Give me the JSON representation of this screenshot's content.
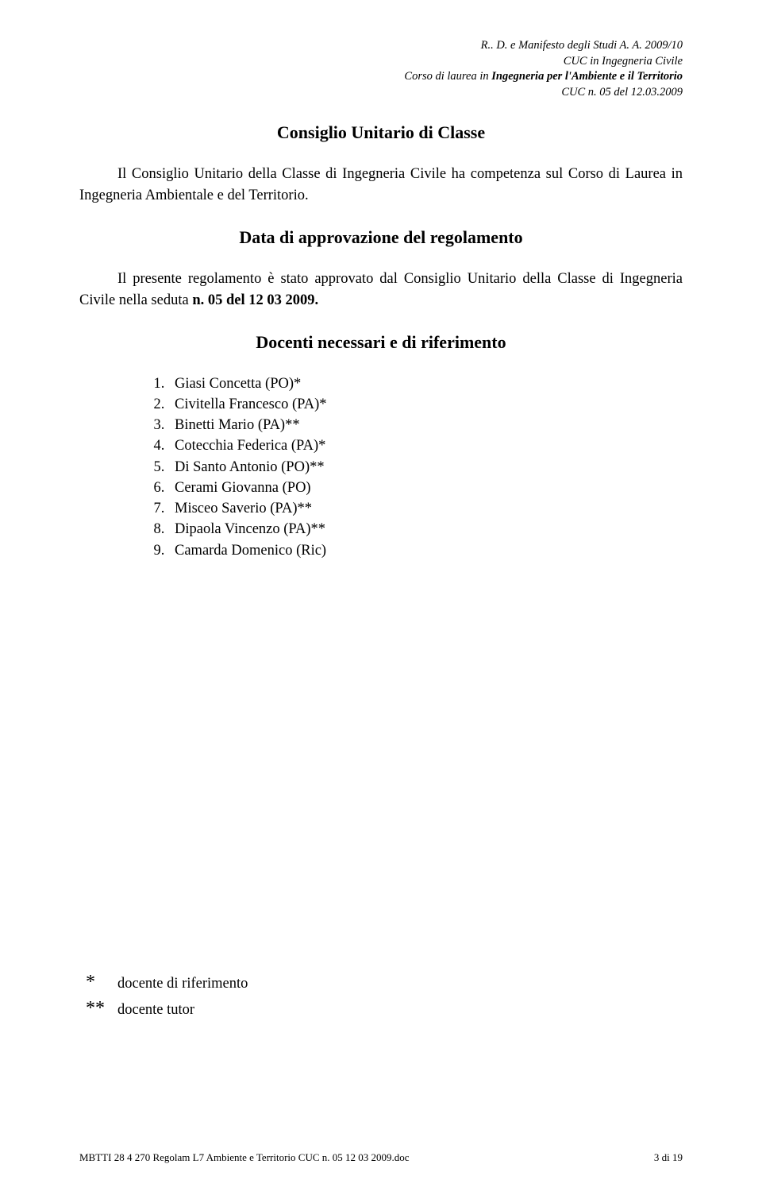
{
  "header": {
    "line1_prefix": "R.. D.  e Manifesto degli Studi A. A.  2009/10",
    "line2": "CUC in Ingegneria Civile",
    "line3_prefix": "Corso di laurea in ",
    "line3_bold": "Ingegneria per l'Ambiente e il Territorio",
    "line4": "CUC  n.  05  del  12.03.2009"
  },
  "sections": {
    "s1_title": "Consiglio Unitario di Classe",
    "s1_body": "Il Consiglio Unitario della Classe di Ingegneria Civile ha competenza sul Corso di Laurea in Ingegneria Ambientale e del Territorio.",
    "s2_title": "Data di approvazione del regolamento",
    "s2_body_a": "Il presente regolamento è stato approvato dal Consiglio Unitario della Classe di Ingegneria Civile nella seduta ",
    "s2_body_b": "n. 05 del 12 03 2009.",
    "s3_title": "Docenti necessari e di riferimento"
  },
  "docenti": [
    "Giasi Concetta (PO)*",
    "Civitella Francesco (PA)*",
    "Binetti Mario (PA)**",
    "Cotecchia Federica (PA)*",
    "Di Santo Antonio (PO)**",
    "Cerami Giovanna (PO)",
    "Misceo Saverio (PA)**",
    "Dipaola Vincenzo (PA)**",
    "Camarda Domenico (Ric)"
  ],
  "legend": {
    "sym1": "*",
    "txt1": "docente di riferimento",
    "sym2": "**",
    "txt2": "docente tutor"
  },
  "footer": {
    "left": "MBTTI 28 4 270 Regolam L7 Ambiente e Territorio  CUC n.  05 12 03 2009.doc",
    "right": "3 di 19"
  }
}
